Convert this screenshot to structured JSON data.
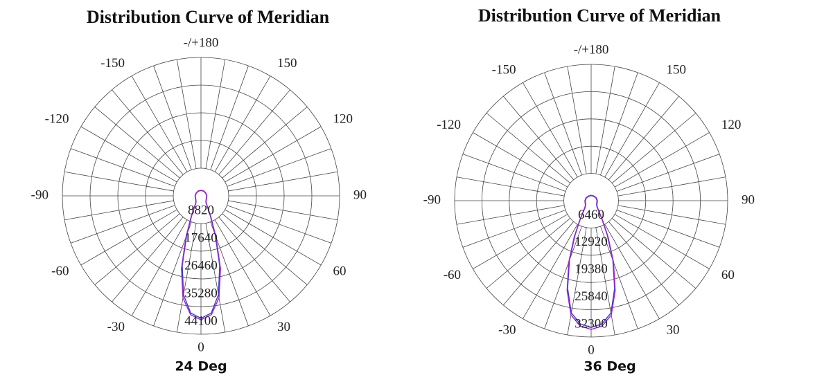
{
  "chart_data": [
    {
      "type": "polar",
      "title": "Distribution Curve of  Meridian",
      "caption": "24 Deg",
      "x": [
        -180,
        -150,
        -120,
        -90,
        -60,
        -50,
        -40,
        -35,
        -30,
        -25,
        -20,
        -15,
        -10,
        -5,
        0,
        5,
        10,
        15,
        20,
        25,
        30,
        35,
        40,
        50,
        60,
        90,
        120,
        150,
        180
      ],
      "series": [
        {
          "color": "#3a3acc",
          "values": [
            1700,
            1700,
            1700,
            1800,
            1900,
            2100,
            2400,
            2800,
            4200,
            7000,
            13200,
            23000,
            32000,
            37500,
            39000,
            37500,
            32000,
            23000,
            13200,
            7000,
            4200,
            2800,
            2400,
            2100,
            1900,
            1800,
            1700,
            1700,
            1700
          ]
        },
        {
          "color": "#a020d0",
          "values": [
            1800,
            1800,
            1800,
            1900,
            2000,
            2200,
            2500,
            3000,
            4500,
            7500,
            14000,
            24000,
            33000,
            38000,
            39500,
            38000,
            33000,
            24000,
            14000,
            7500,
            4500,
            3000,
            2500,
            2200,
            2000,
            1900,
            1800,
            1800,
            1800
          ]
        }
      ],
      "xticks": [
        {
          "value": 180,
          "label": "-/+180"
        },
        150,
        120,
        90,
        60,
        30,
        0,
        -30,
        -60,
        -90,
        -120,
        -150
      ],
      "minor_xticks": [
        -170,
        -160,
        -140,
        -130,
        -110,
        -100,
        -80,
        -70,
        -50,
        -40,
        -20,
        -10,
        10,
        20,
        40,
        50,
        70,
        80,
        100,
        110,
        130,
        140,
        160,
        170
      ],
      "ylim": [
        0,
        44100
      ],
      "yticks": [
        8820,
        17640,
        26460,
        35280,
        44100
      ]
    },
    {
      "type": "polar",
      "title": "Distribution Curve of  Meridian",
      "caption": "36 Deg",
      "x": [
        -180,
        -150,
        -120,
        -90,
        -60,
        -50,
        -40,
        -35,
        -30,
        -25,
        -20,
        -15,
        -10,
        -5,
        0,
        5,
        10,
        15,
        20,
        25,
        30,
        35,
        40,
        50,
        60,
        90,
        120,
        150,
        180
      ],
      "series": [
        {
          "color": "#3a3acc",
          "values": [
            1200,
            1200,
            1300,
            1400,
            1500,
            1700,
            2300,
            3300,
            5200,
            9000,
            15000,
            21500,
            27000,
            29300,
            30000,
            29300,
            27000,
            21500,
            15000,
            9000,
            5200,
            3300,
            2300,
            1700,
            1500,
            1400,
            1300,
            1200,
            1200
          ]
        },
        {
          "color": "#a020d0",
          "values": [
            1300,
            1300,
            1400,
            1500,
            1600,
            1800,
            2500,
            3500,
            5500,
            9500,
            15500,
            22000,
            27500,
            29800,
            30500,
            29800,
            27500,
            22000,
            15500,
            9500,
            5500,
            3500,
            2500,
            1800,
            1600,
            1500,
            1400,
            1300,
            1300
          ]
        }
      ],
      "xticks": [
        {
          "value": 180,
          "label": "-/+180"
        },
        150,
        120,
        90,
        60,
        30,
        0,
        -30,
        -60,
        -90,
        -120,
        -150
      ],
      "minor_xticks": [
        -170,
        -160,
        -140,
        -130,
        -110,
        -100,
        -80,
        -70,
        -50,
        -40,
        -20,
        -10,
        10,
        20,
        40,
        50,
        70,
        80,
        100,
        110,
        130,
        140,
        160,
        170
      ],
      "ylim": [
        0,
        32300
      ],
      "yticks": [
        6460,
        12920,
        19380,
        25840,
        32300
      ]
    }
  ]
}
